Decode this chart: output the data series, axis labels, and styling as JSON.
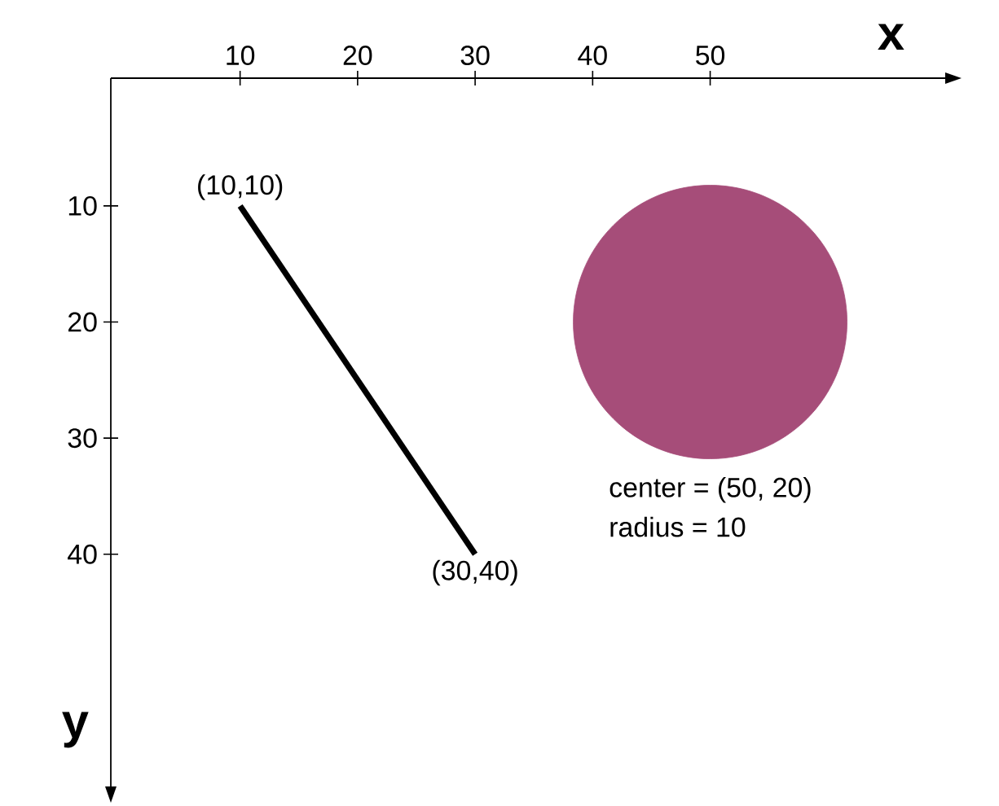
{
  "chart_data": {
    "type": "line",
    "xlabel": "x",
    "ylabel": "y",
    "xlim": [
      -1,
      70
    ],
    "ylim": [
      60,
      -1
    ],
    "xticks": [
      10,
      20,
      30,
      40,
      50
    ],
    "yticks": [
      10,
      20,
      30,
      40
    ],
    "series": [
      {
        "x": [
          10,
          30
        ],
        "values": [
          10,
          40
        ],
        "color": "#000000"
      },
      {
        "type": "bubble",
        "x": [
          50
        ],
        "values": [
          20
        ],
        "sizes": [
          1
        ],
        "color": "#a64d79"
      }
    ],
    "annotations": [
      {
        "text": "(10,10)",
        "x": 10,
        "y": 10
      },
      {
        "text": "(30,40)",
        "x": 30,
        "y": 40
      },
      "center = (50, 20)",
      "radius = 10"
    ]
  }
}
